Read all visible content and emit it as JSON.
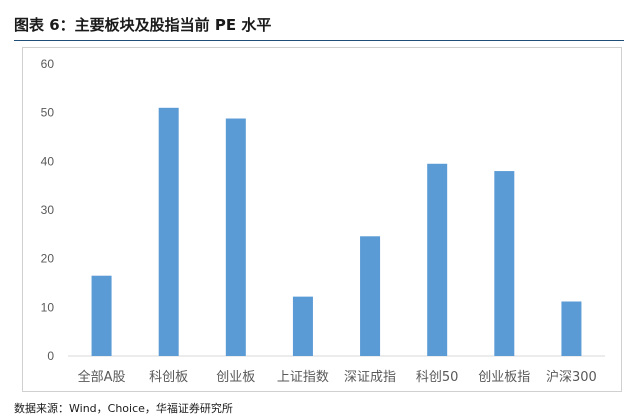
{
  "figure": {
    "title": "图表 6：主要板块及股指当前 PE 水平",
    "source": "数据来源：Wind，Choice，华福证券研究所"
  },
  "colors": {
    "bar": "#5b9bd5",
    "axis_line": "#d9d9d9",
    "tick_text": "#595959",
    "title_rule": "#1f4e79"
  },
  "chart_data": {
    "type": "bar",
    "categories": [
      "全部A股",
      "科创板",
      "创业板",
      "上证指数",
      "深证成指",
      "科创50",
      "创业板指",
      "沪深300"
    ],
    "values": [
      16.5,
      51,
      48.8,
      12.2,
      24.6,
      39.5,
      38,
      11.2
    ],
    "title": "",
    "xlabel": "",
    "ylabel": "",
    "ylim": [
      0,
      60
    ],
    "yticks": [
      0,
      10,
      20,
      30,
      40,
      50,
      60
    ],
    "grid": false,
    "legend": "none"
  }
}
